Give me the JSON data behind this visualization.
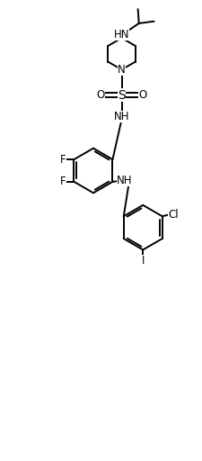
{
  "bg_color": "#ffffff",
  "line_color": "#000000",
  "line_width": 1.4,
  "font_size": 8.5,
  "xlim": [
    0,
    10
  ],
  "ylim": [
    0,
    22.7
  ],
  "figsize": [
    2.26,
    5.12
  ],
  "dpi": 100
}
